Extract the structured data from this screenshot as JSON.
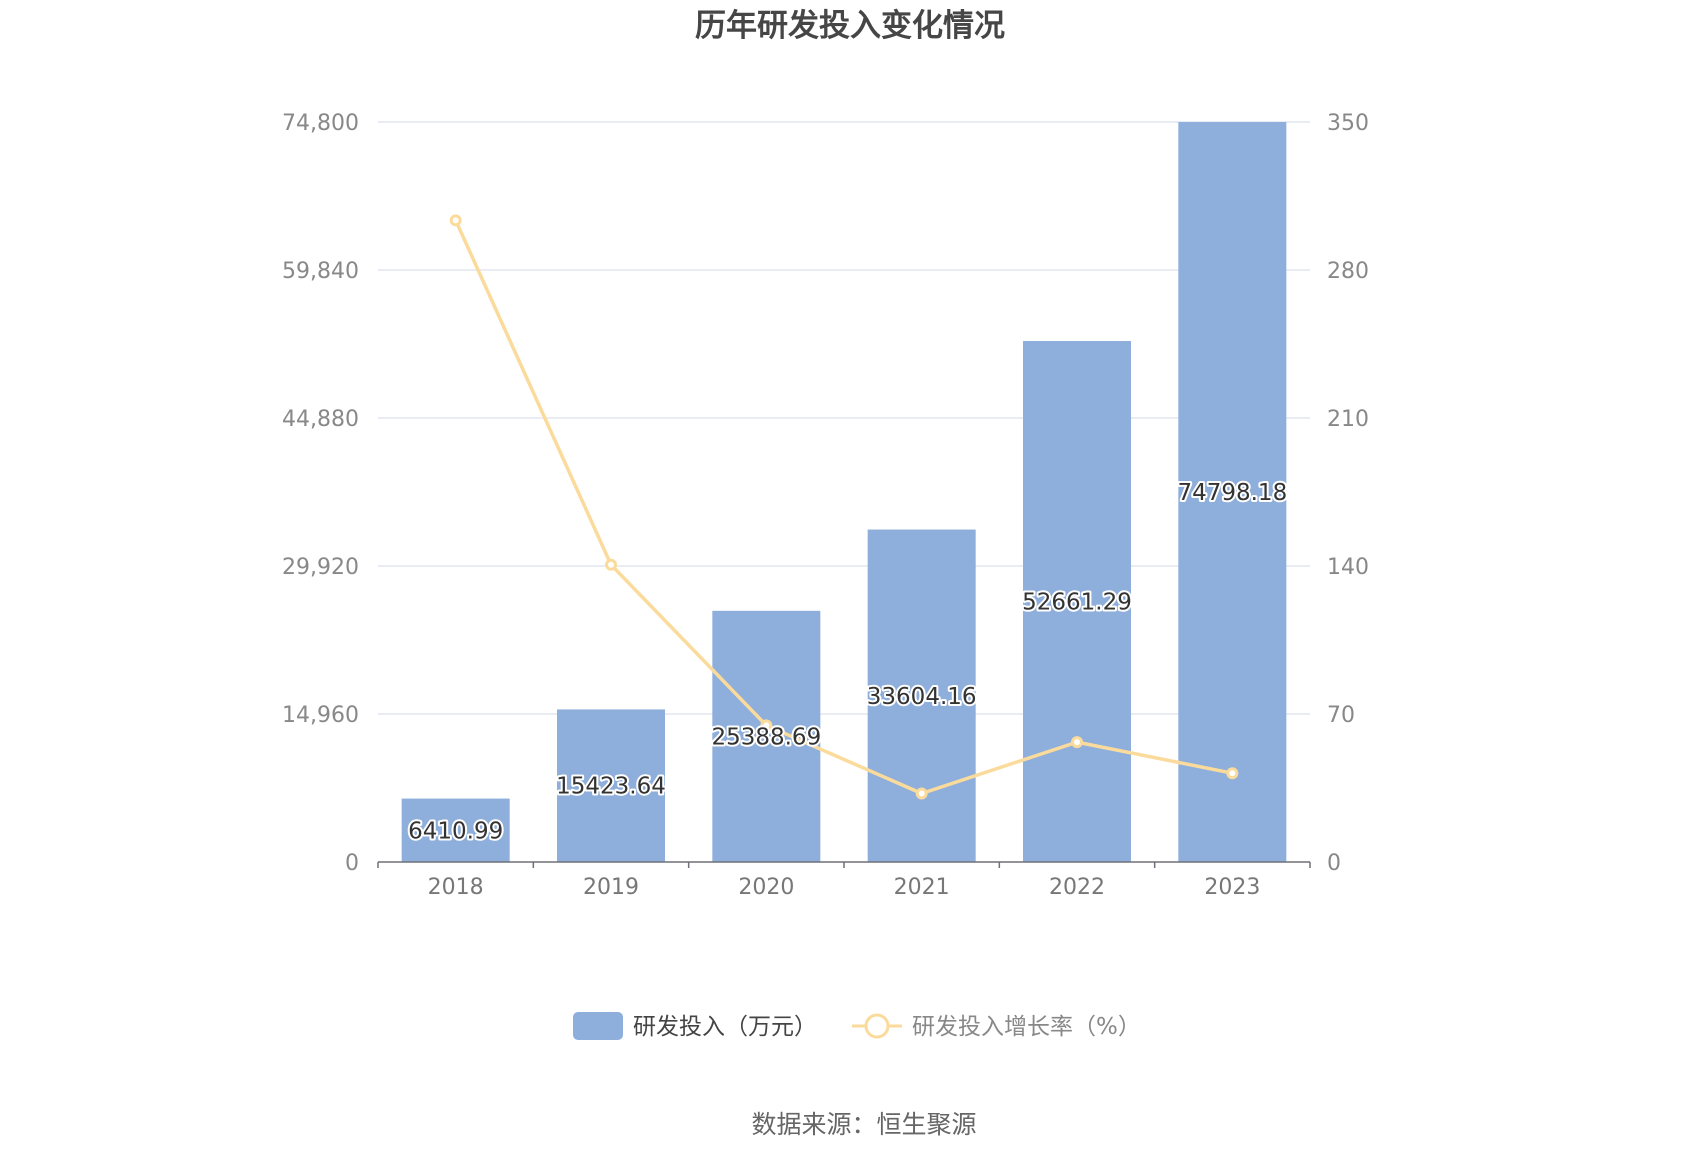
{
  "chart_data": {
    "type": "bar",
    "title": "历年研发投入变化情况",
    "categories": [
      "2018",
      "2019",
      "2020",
      "2021",
      "2022",
      "2023"
    ],
    "series": [
      {
        "name": "研发投入（万元）",
        "type": "bar",
        "axis": "left",
        "values": [
          6410.99,
          15423.64,
          25388.69,
          33604.16,
          52661.29,
          74798.18
        ],
        "labels": [
          "6410.99",
          "15423.64",
          "25388.69",
          "33604.16",
          "52661.29",
          "74798.18"
        ],
        "color": "#8eaedb"
      },
      {
        "name": "研发投入增长率（%）",
        "type": "line",
        "axis": "right",
        "values": [
          303.5,
          140.6,
          64.6,
          32.4,
          56.7,
          42.0
        ],
        "color": "#fbdb9b"
      }
    ],
    "y_left": {
      "ylim": [
        0,
        74800
      ],
      "ticks": [
        0,
        14960,
        29920,
        44880,
        59840,
        74800
      ],
      "tick_labels": [
        "0",
        "14,960",
        "29,920",
        "44,880",
        "59,840",
        "74,800"
      ]
    },
    "y_right": {
      "ylim": [
        0,
        350
      ],
      "ticks": [
        0,
        70,
        140,
        210,
        280,
        350
      ],
      "tick_labels": [
        "0",
        "70",
        "140",
        "210",
        "280",
        "350"
      ]
    },
    "grid": true,
    "legend_position": "bottom-center"
  },
  "legend": {
    "items": [
      {
        "label": "研发投入（万元）",
        "kind": "bar",
        "color": "#8eaedb"
      },
      {
        "label": "研发投入增长率（%）",
        "kind": "line",
        "color": "#fbdb9b"
      }
    ]
  },
  "footer": {
    "source": "数据来源：恒生聚源"
  }
}
